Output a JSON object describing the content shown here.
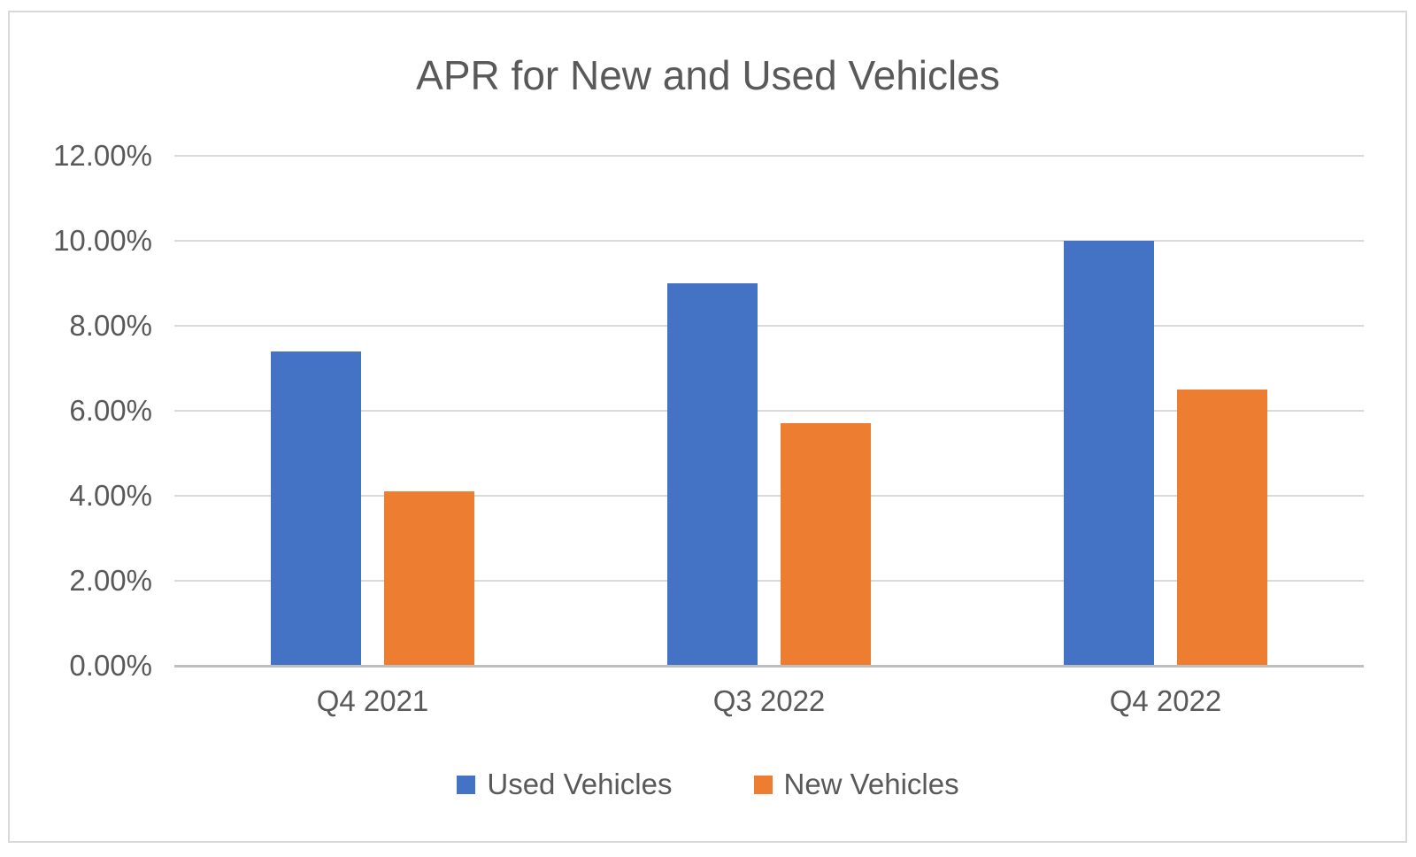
{
  "chart_data": {
    "type": "bar",
    "title": "APR for New and Used Vehicles",
    "categories": [
      "Q4 2021",
      "Q3 2022",
      "Q4 2022"
    ],
    "series": [
      {
        "name": "Used Vehicles",
        "color": "#4472C4",
        "values": [
          7.4,
          9.0,
          10.0
        ]
      },
      {
        "name": "New Vehicles",
        "color": "#ED7D31",
        "values": [
          4.1,
          5.7,
          6.5
        ]
      }
    ],
    "y_ticks": [
      "12.00%",
      "10.00%",
      "8.00%",
      "6.00%",
      "4.00%",
      "2.00%",
      "0.00%"
    ],
    "ylim": [
      0,
      12
    ],
    "y_tick_step": 2,
    "grid": true,
    "legend_position": "bottom",
    "xlabel": "",
    "ylabel": ""
  },
  "colors": {
    "text": "#595959",
    "gridline": "#D9D9D9",
    "axis_line": "#BFBFBF",
    "frame_border": "#D9D9D9",
    "background": "#FFFFFF"
  }
}
